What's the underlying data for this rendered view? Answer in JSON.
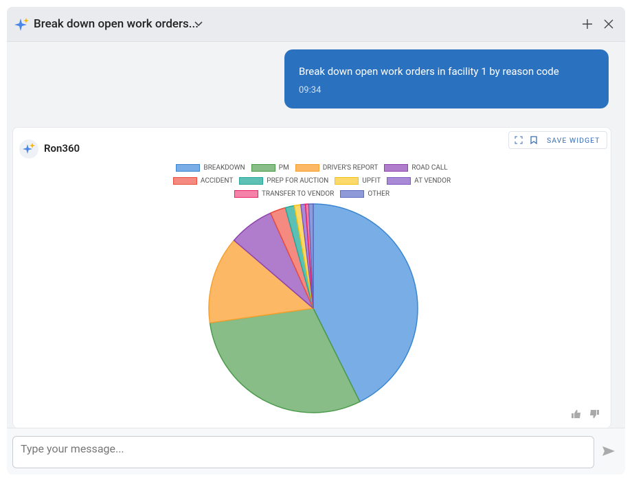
{
  "header": {
    "title": "Break down open work orders..."
  },
  "message": {
    "text": "Break down open work orders in facility 1 by reason code",
    "time": "09:34"
  },
  "card": {
    "author": "Ron360",
    "save_button": "SAVE WIDGET"
  },
  "input": {
    "placeholder": "Type your message..."
  },
  "chart_data": {
    "type": "pie",
    "legend": "top",
    "categories": [
      "BREAKDOWN",
      "PM",
      "DRIVER'S REPORT",
      "ROAD CALL",
      "ACCIDENT",
      "PREP FOR AUCTION",
      "UPFIT",
      "AT VENDOR",
      "TRANSFER TO VENDOR",
      "OTHER"
    ],
    "values": [
      42.6,
      30.1,
      13.5,
      7.0,
      2.4,
      1.4,
      1.0,
      0.7,
      0.5,
      0.7
    ],
    "colors": [
      "#79ade6",
      "#88bd88",
      "#fdb866",
      "#b07ccc",
      "#f48a80",
      "#5cc0b4",
      "#fcd96a",
      "#a98ad6",
      "#f582a8",
      "#8f9ad8"
    ],
    "border_colors": [
      "#3a85d0",
      "#4a9a4a",
      "#f5a030",
      "#8e44ad",
      "#e74c3c",
      "#26a69a",
      "#f4c20d",
      "#7e57c2",
      "#e91e63",
      "#5c6bc0"
    ]
  }
}
